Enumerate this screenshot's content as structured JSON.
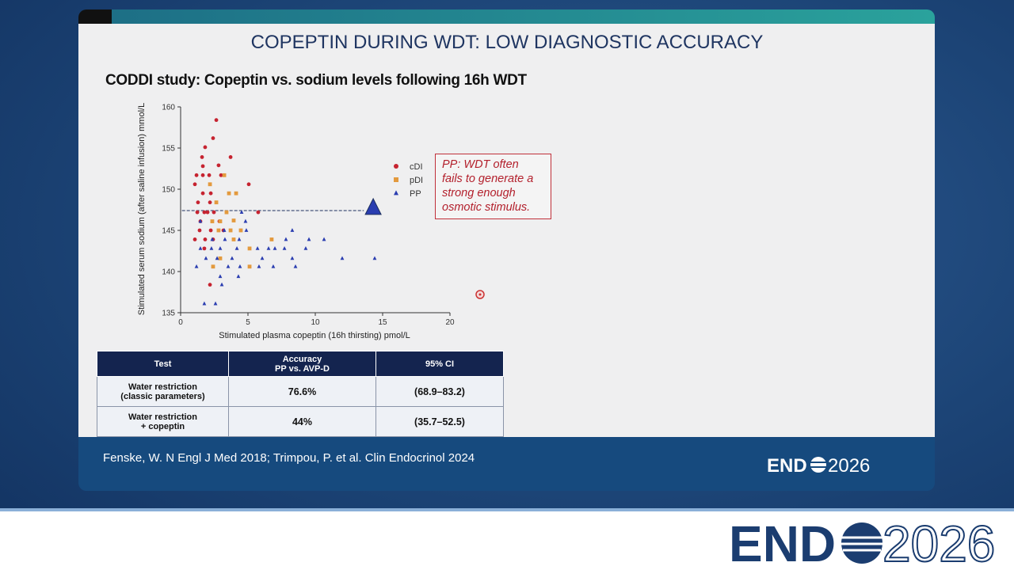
{
  "slide_title": "COPEPTIN DURING WDT: LOW DIAGNOSTIC ACCURACY",
  "chart_data": {
    "type": "scatter",
    "title": "CODDI study: Copeptin vs. sodium levels following 16h WDT",
    "x_label": "Stimulated plasma copeptin (16h thirsting) pmol/L",
    "y_label": "Stimulated serum sodium (after saline infusion) mmol/L",
    "xlim": [
      0,
      20
    ],
    "xticks": [
      0,
      5,
      10,
      15,
      20
    ],
    "ylim": [
      135,
      160
    ],
    "yticks": [
      135,
      140,
      145,
      150,
      155,
      160
    ],
    "grid": false,
    "legend": "right",
    "series": [
      {
        "name": "cDI",
        "color": "#c62330",
        "marker": "circle",
        "x": [
          2.65,
          2.41,
          1.82,
          1.59,
          3.71,
          1.65,
          2.82,
          1.18,
          1.65,
          2.12,
          3.0,
          1.06,
          5.06,
          1.65,
          2.24,
          1.29,
          2.18,
          1.24,
          1.76,
          2.0,
          2.47,
          5.76,
          1.47,
          2.88,
          1.41,
          2.24,
          3.18,
          1.06,
          1.82,
          2.41,
          1.76,
          2.18
        ],
        "y": [
          158.4,
          156.2,
          155.1,
          153.9,
          153.9,
          152.8,
          152.9,
          151.7,
          151.7,
          151.7,
          151.7,
          150.6,
          150.6,
          149.5,
          149.5,
          148.4,
          148.4,
          147.2,
          147.2,
          147.2,
          147.2,
          147.2,
          146.1,
          146.1,
          145.0,
          145.0,
          145.0,
          143.9,
          143.9,
          143.9,
          142.8,
          138.4
        ]
      },
      {
        "name": "pDI",
        "color": "#e39a3e",
        "marker": "square",
        "x": [
          3.24,
          2.18,
          3.59,
          4.12,
          2.65,
          3.41,
          3.94,
          2.35,
          2.94,
          3.71,
          2.82,
          4.47,
          3.94,
          6.76,
          5.12,
          2.94,
          2.41,
          5.12
        ],
        "y": [
          151.7,
          150.6,
          149.5,
          149.5,
          148.4,
          147.2,
          146.2,
          146.1,
          146.1,
          145.0,
          145.0,
          145.0,
          143.9,
          143.9,
          142.8,
          141.6,
          140.6,
          140.6
        ]
      },
      {
        "name": "PP",
        "color": "#2a3db0",
        "marker": "triangle",
        "x": [
          4.53,
          1.47,
          4.82,
          3.24,
          4.88,
          8.29,
          2.35,
          3.29,
          4.35,
          7.82,
          9.53,
          10.65,
          1.47,
          2.29,
          2.94,
          4.18,
          5.71,
          6.53,
          7.0,
          7.71,
          9.29,
          1.88,
          2.71,
          3.82,
          6.06,
          8.29,
          12.0,
          14.41,
          1.18,
          3.53,
          4.41,
          5.82,
          6.88,
          8.53,
          2.94,
          4.29,
          3.06,
          1.76,
          2.59
        ],
        "y": [
          147.2,
          146.1,
          146.1,
          145.0,
          145.0,
          145.0,
          143.9,
          143.9,
          143.9,
          143.9,
          143.9,
          143.9,
          142.8,
          142.8,
          142.8,
          142.8,
          142.8,
          142.8,
          142.8,
          142.8,
          142.8,
          141.6,
          141.6,
          141.6,
          141.6,
          141.6,
          141.6,
          141.6,
          140.6,
          140.6,
          140.6,
          140.6,
          140.6,
          140.6,
          139.4,
          139.4,
          138.4,
          136.1,
          136.1
        ]
      }
    ],
    "reference_line": {
      "y": 147.4,
      "x": [
        0.1,
        13.6
      ],
      "color": "#1c2f5e"
    },
    "highlight_point": {
      "x": 14.3,
      "y": 147.7,
      "color": "#2a3db0"
    },
    "annotation": "PP: WDT often\nfails to generate a\nstrong enough\nosmotic stimulus."
  },
  "table": {
    "header": [
      "Test",
      "Accuracy\nPP vs. AVP-D",
      "95% CI"
    ],
    "rows": [
      [
        "Water restriction\n(classic parameters)",
        "76.6%",
        "(68.9–83.2)"
      ],
      [
        "Water restriction\n+ copeptin",
        "44%",
        "(35.7–52.5)"
      ]
    ]
  },
  "citation": "Fenske, W. N Engl J Med 2018; Trimpou, P. et al. Clin Endocrinol 2024",
  "logo": {
    "left": "END",
    "right": "2026"
  }
}
